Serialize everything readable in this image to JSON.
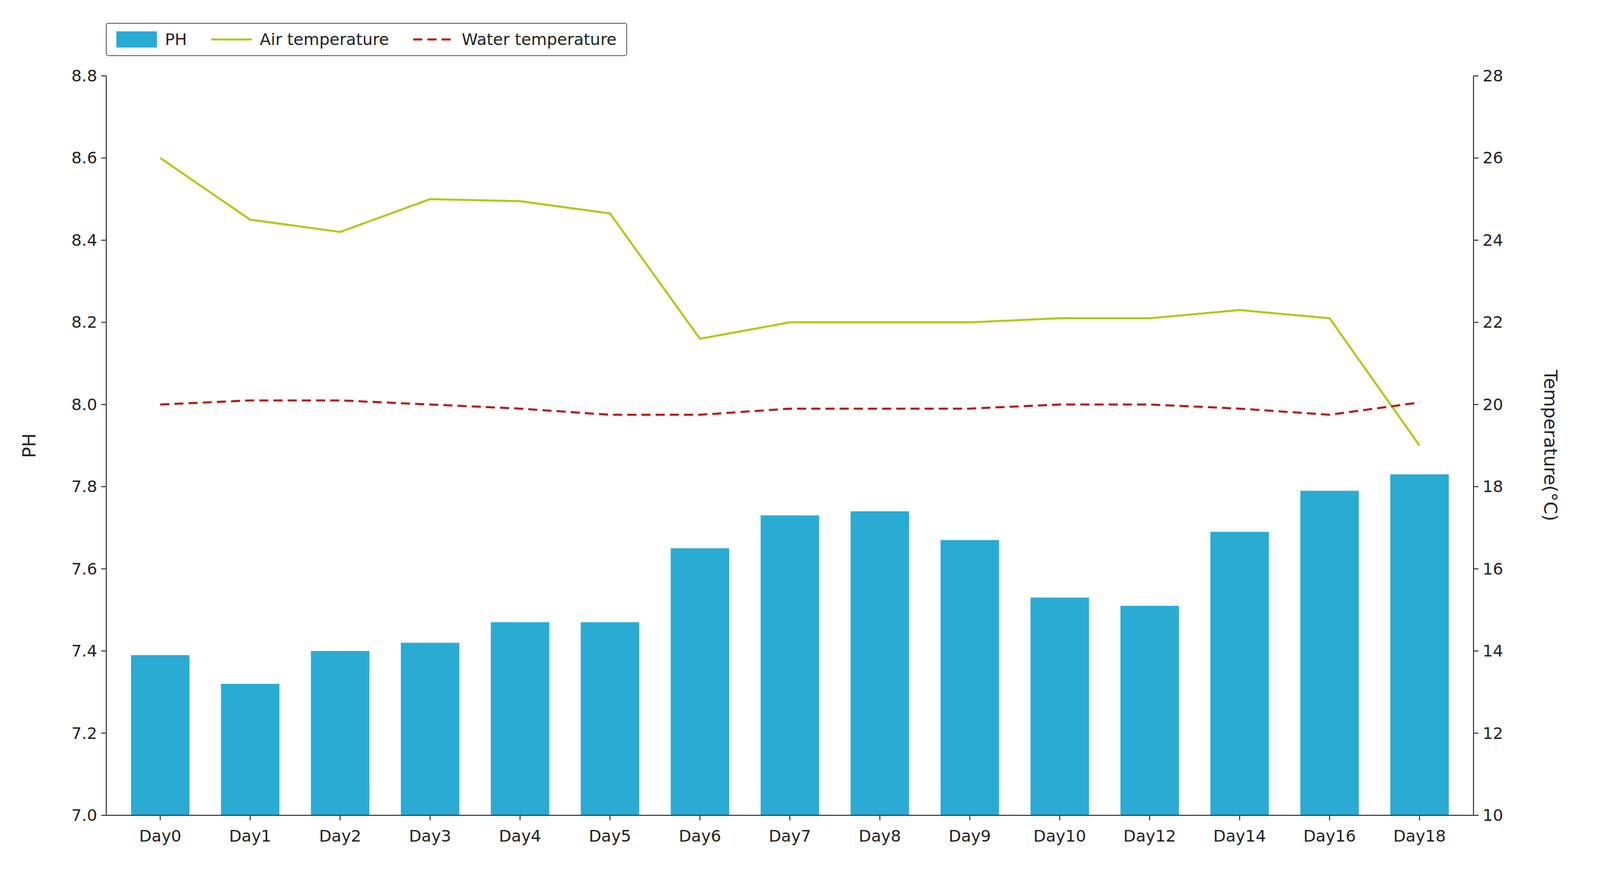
{
  "chart_data": {
    "type": "bar",
    "categories": [
      "Day0",
      "Day1",
      "Day2",
      "Day3",
      "Day4",
      "Day5",
      "Day6",
      "Day7",
      "Day8",
      "Day9",
      "Day10",
      "Day12",
      "Day14",
      "Day16",
      "Day18"
    ],
    "series": [
      {
        "name": "PH",
        "type": "bar",
        "color": "#29ABD4",
        "values": [
          7.39,
          7.32,
          7.4,
          7.42,
          7.47,
          7.47,
          7.65,
          7.73,
          7.74,
          7.67,
          7.53,
          7.51,
          7.69,
          7.79,
          7.83
        ]
      },
      {
        "name": "Air temperature",
        "type": "line",
        "color": "#AACC11",
        "line_style": "solid",
        "axis": "y2",
        "values": [
          26.0,
          24.5,
          24.2,
          25.0,
          24.95,
          24.65,
          21.6,
          22.0,
          22.0,
          22.0,
          22.1,
          22.1,
          22.3,
          22.1,
          19.0
        ]
      },
      {
        "name": "Water temperature",
        "type": "line",
        "color": "#BB1111",
        "line_style": "dashed",
        "axis": "y2",
        "values": [
          20.0,
          20.1,
          20.1,
          20.0,
          19.9,
          19.75,
          19.75,
          19.9,
          19.9,
          19.9,
          20.0,
          20.0,
          19.9,
          19.75,
          20.05
        ]
      }
    ],
    "ylabel": "PH",
    "y2label": "Temperature(°C)",
    "ylim": [
      7.0,
      8.8
    ],
    "yticks": [
      {
        "value": 7.0,
        "label": "7.0"
      },
      7.2,
      7.4,
      7.6,
      7.8,
      {
        "value": 8.0,
        "label": "8.0"
      },
      8.2,
      8.4,
      8.6,
      8.8
    ],
    "y2lim": [
      10,
      28
    ],
    "y2ticks": [
      10,
      12,
      14,
      16,
      18,
      20,
      22,
      24,
      26,
      28
    ],
    "legend": "upper left",
    "grid": false
  }
}
